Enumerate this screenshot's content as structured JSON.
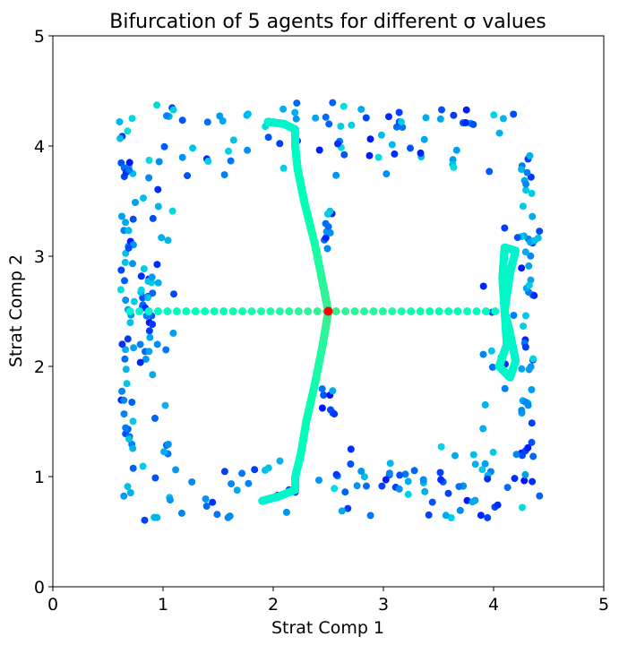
{
  "chart_data": {
    "type": "scatter",
    "title": "Bifurcation of 5 agents for different σ values",
    "xlabel": "Strat Comp 1",
    "ylabel": "Strat Comp 2",
    "xlim": [
      0,
      5
    ],
    "ylim": [
      0,
      5
    ],
    "xticks": [
      "0",
      "1",
      "2",
      "3",
      "4",
      "5"
    ],
    "yticks": [
      "0",
      "1",
      "2",
      "3",
      "4",
      "5"
    ],
    "grid": false,
    "colormap": "rainbow",
    "center_point": {
      "x": 2.5,
      "y": 2.5,
      "color": "#ff0000"
    },
    "structures": [
      {
        "name": "horizontal-branch",
        "kind": "line",
        "points": [
          [
            0.7,
            2.5
          ],
          [
            4.1,
            2.5
          ]
        ]
      },
      {
        "name": "upper-branch",
        "kind": "curve",
        "points": [
          [
            2.5,
            2.5
          ],
          [
            2.45,
            2.75
          ],
          [
            2.38,
            3.1
          ],
          [
            2.28,
            3.5
          ],
          [
            2.22,
            3.8
          ],
          [
            2.2,
            4.0
          ],
          [
            2.2,
            4.15
          ],
          [
            2.1,
            4.2
          ],
          [
            1.95,
            4.22
          ]
        ]
      },
      {
        "name": "lower-branch",
        "kind": "curve",
        "points": [
          [
            2.5,
            2.5
          ],
          [
            2.45,
            2.2
          ],
          [
            2.38,
            1.85
          ],
          [
            2.3,
            1.5
          ],
          [
            2.25,
            1.2
          ],
          [
            2.2,
            1.0
          ],
          [
            2.2,
            0.88
          ],
          [
            2.05,
            0.82
          ],
          [
            1.9,
            0.78
          ]
        ]
      },
      {
        "name": "right-loop",
        "kind": "curve",
        "points": [
          [
            4.1,
            2.5
          ],
          [
            4.12,
            2.2
          ],
          [
            4.05,
            2.0
          ],
          [
            4.15,
            1.9
          ],
          [
            4.2,
            2.05
          ],
          [
            4.15,
            2.3
          ],
          [
            4.1,
            2.5
          ],
          [
            4.08,
            2.8
          ],
          [
            4.1,
            3.08
          ],
          [
            4.2,
            3.05
          ],
          [
            4.15,
            2.85
          ],
          [
            4.1,
            2.5
          ]
        ]
      }
    ],
    "scatter_groups": [
      {
        "name": "left-column",
        "x": 0.68,
        "y_range": [
          0.9,
          4.1
        ],
        "count": 45
      },
      {
        "name": "left-inner-column",
        "x": 0.85,
        "y_range": [
          1.9,
          2.9
        ],
        "count": 26
      },
      {
        "name": "right-column",
        "x": 4.3,
        "y_range": [
          0.95,
          4.05
        ],
        "count": 45
      },
      {
        "name": "top-row",
        "y": 4.1,
        "x_range": [
          1.05,
          3.9
        ],
        "count": 40
      },
      {
        "name": "bottom-row",
        "y": 0.88,
        "x_range": [
          1.05,
          3.9
        ],
        "count": 40
      },
      {
        "name": "center-vertical-upper",
        "x": 2.5,
        "y_range": [
          3.05,
          3.45
        ],
        "count": 10
      },
      {
        "name": "center-vertical-lower",
        "x": 2.5,
        "y_range": [
          1.55,
          1.8
        ],
        "count": 8
      }
    ]
  }
}
